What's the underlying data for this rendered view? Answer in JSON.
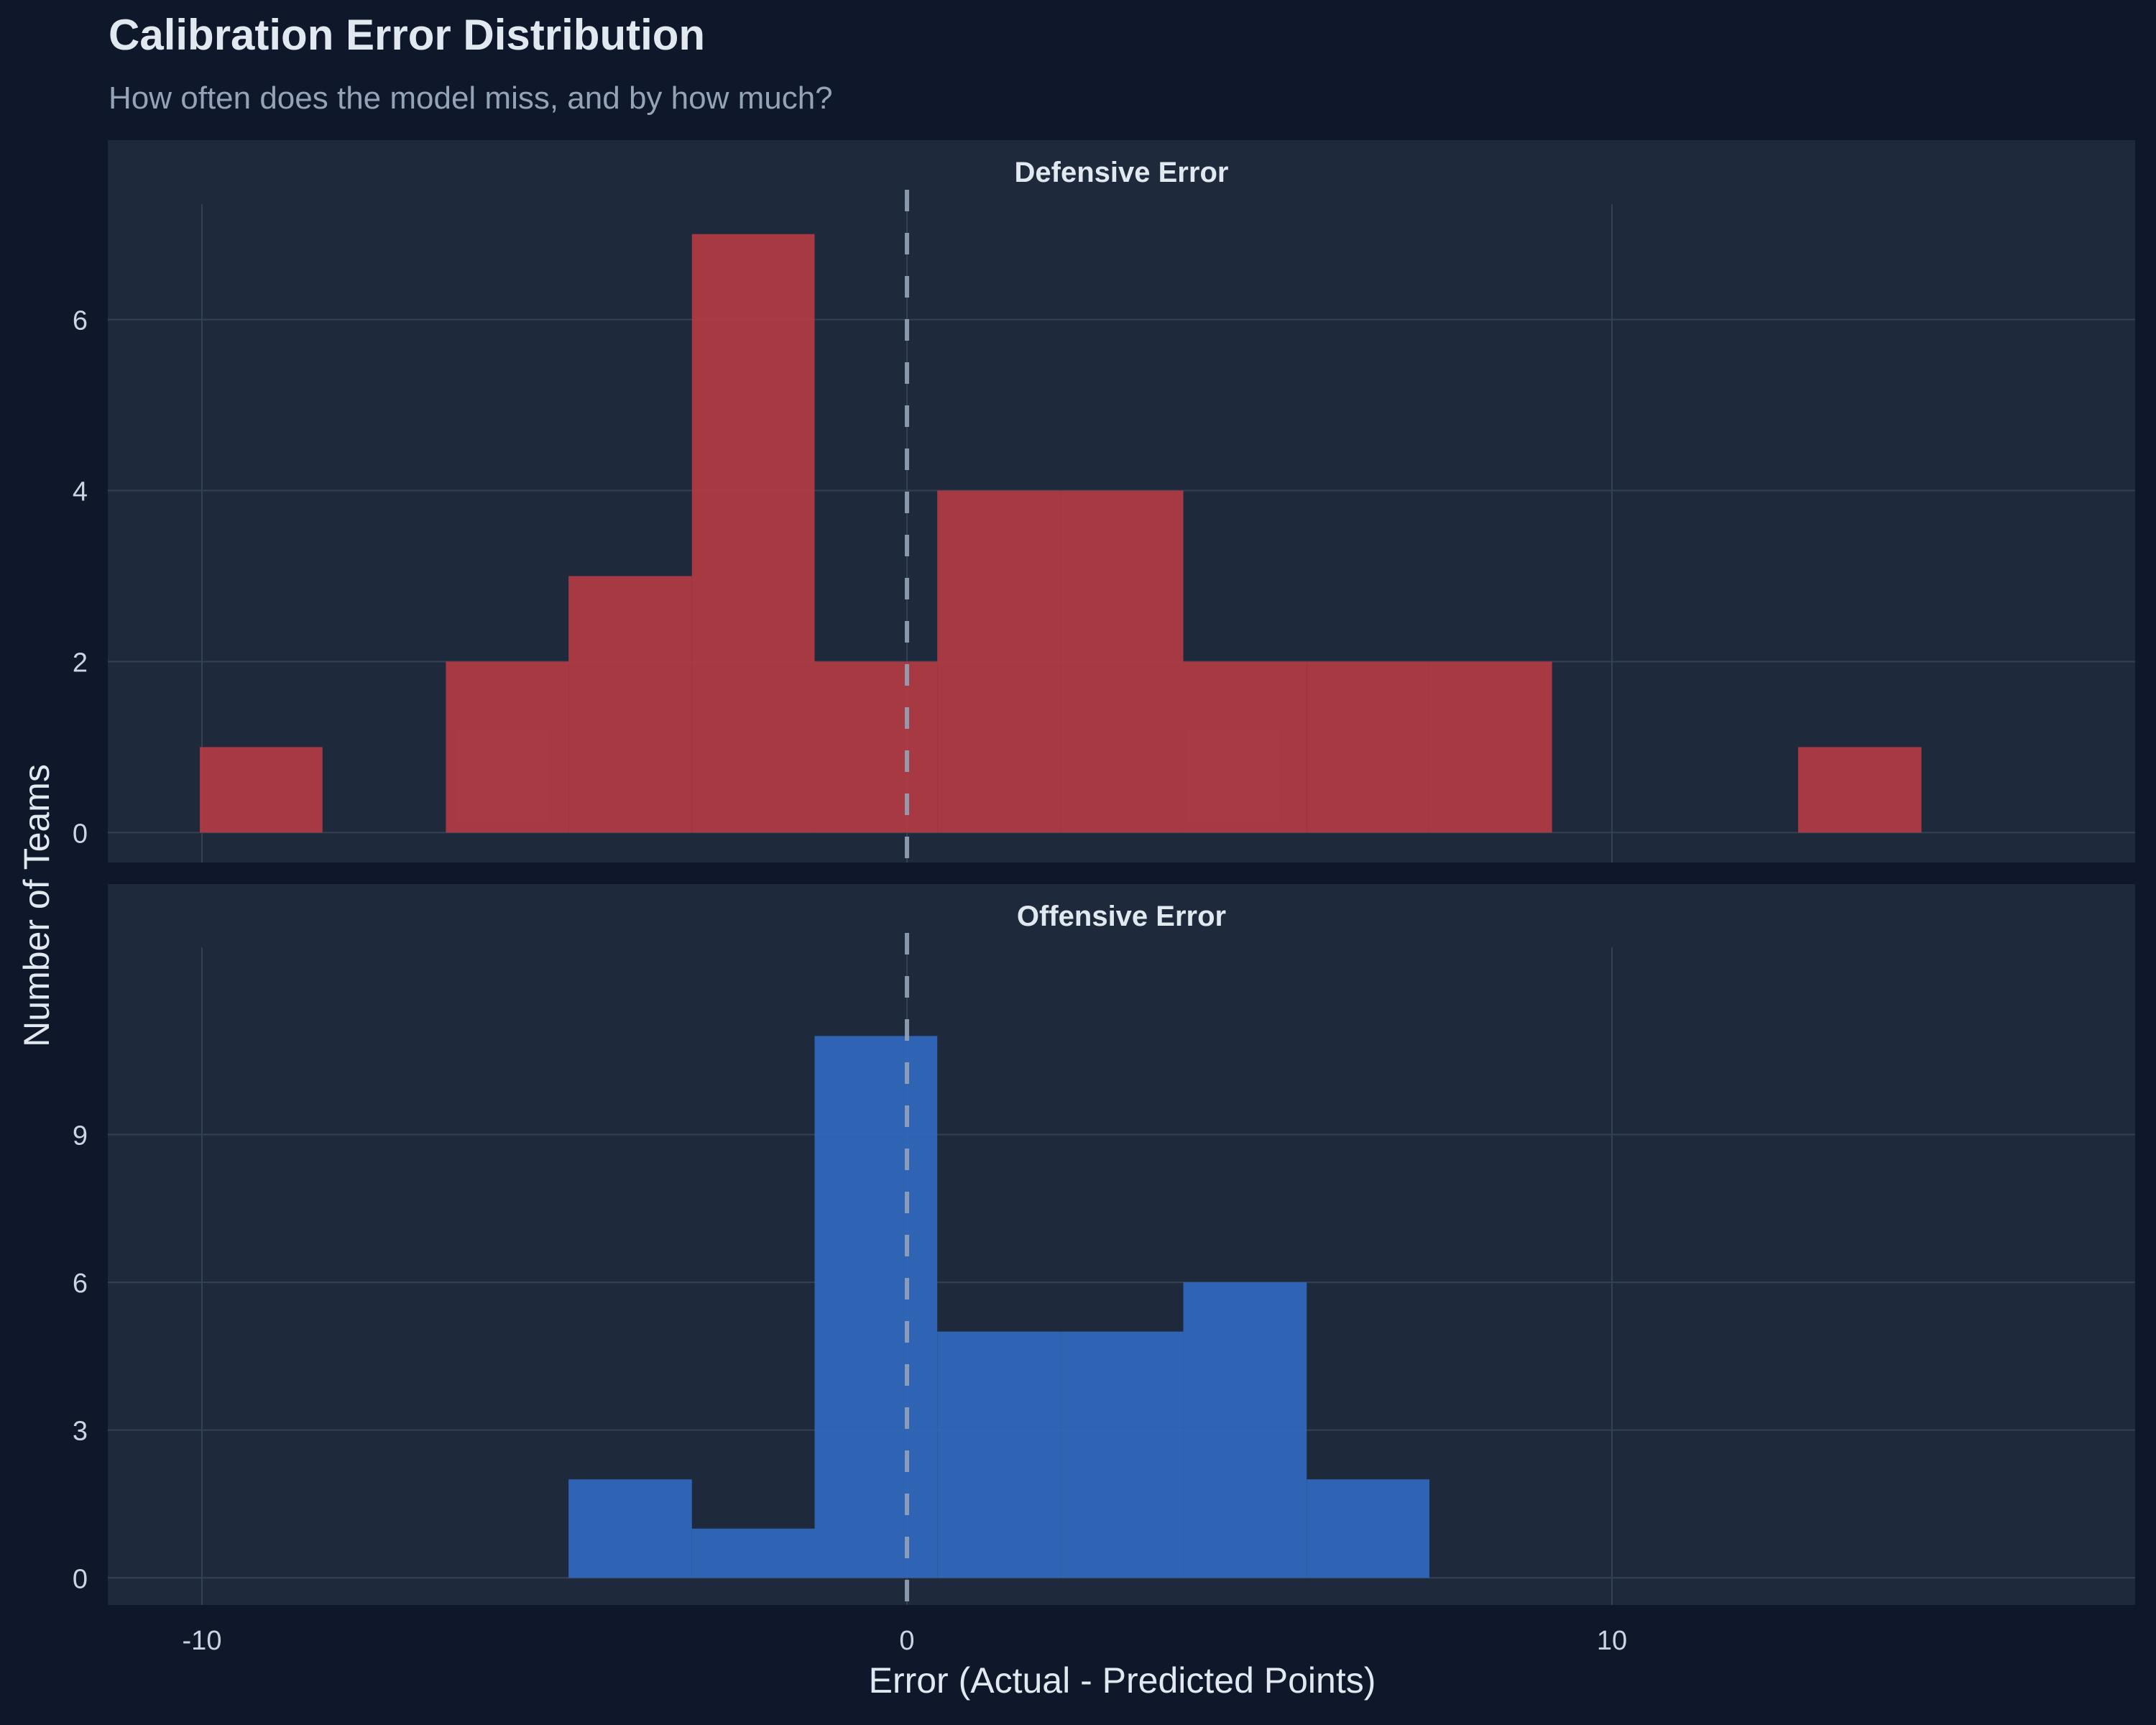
{
  "header": {
    "title": "Calibration Error Distribution",
    "subtitle": "How often does the model miss, and by how much?"
  },
  "colors": {
    "background": "#0f172a",
    "panel": "#1e293b",
    "grid": "#334155",
    "defensive": "#b33b44",
    "offensive": "#3168bf",
    "reference_line": "#94a3b8",
    "text": "#e2e8f0",
    "muted_text": "#94a3b8"
  },
  "chart_data": {
    "type": "bar",
    "subtype": "histogram",
    "title": "Calibration Error Distribution",
    "subtitle": "How often does the model miss, and by how much?",
    "xlabel": "Error (Actual - Predicted Points)",
    "ylabel": "Number of Teams",
    "xlim": [
      -11.3,
      17.4
    ],
    "x_ticks": [
      -10,
      0,
      10
    ],
    "x_tick_labels": [
      "-10",
      "0",
      "10"
    ],
    "grid": true,
    "reference_line": {
      "x": 0,
      "style": "dashed"
    },
    "bin_edges": [
      -10.03,
      -8.29,
      -6.54,
      -4.8,
      -3.05,
      -1.31,
      0.43,
      2.18,
      3.92,
      5.67,
      7.41,
      9.15,
      10.9,
      12.64,
      14.39,
      16.13
    ],
    "panels": [
      {
        "name": "Defensive Error",
        "color": "#b33b44",
        "ylim": [
          -0.35,
          7.35
        ],
        "y_ticks": [
          0,
          2,
          4,
          6
        ],
        "y_tick_labels": [
          "0",
          "2",
          "4",
          "6"
        ],
        "counts": [
          1,
          0,
          2,
          3,
          7,
          2,
          4,
          4,
          2,
          2,
          2,
          0,
          0,
          1,
          0
        ]
      },
      {
        "name": "Offensive Error",
        "color": "#3168bf",
        "ylim": [
          -0.55,
          12.8
        ],
        "y_ticks": [
          0,
          3,
          6,
          9
        ],
        "y_tick_labels": [
          "0",
          "3",
          "6",
          "9"
        ],
        "counts": [
          0,
          0,
          0,
          2,
          1,
          11,
          5,
          5,
          6,
          2,
          0,
          0,
          0,
          0,
          0
        ]
      }
    ]
  }
}
